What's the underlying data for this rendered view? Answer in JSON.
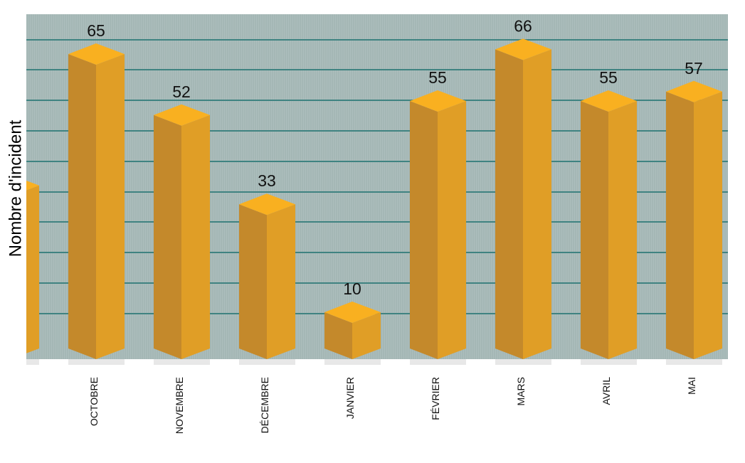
{
  "chart_data": {
    "type": "bar",
    "title": "",
    "xlabel": "",
    "ylabel": "Nombre d'incident",
    "categories": [
      "",
      "OCTOBRE",
      "NOVEMBRE",
      "DÉCEMBRE",
      "JANVIER",
      "FÉVRIER",
      "MARS",
      "AVRIL",
      "MAI"
    ],
    "values": [
      37,
      65,
      52,
      33,
      10,
      55,
      66,
      55,
      57
    ],
    "data_labels": [
      "",
      "65",
      "52",
      "33",
      "10",
      "55",
      "66",
      "55",
      "57"
    ],
    "ylim": [
      0,
      70
    ],
    "grid": true,
    "legend": "none",
    "colors": {
      "bar_front": "#C4892B",
      "bar_side": "#E09E26",
      "bar_top": "#F9B020",
      "plot_background": "#A4B7B5",
      "gridline": "#3F8381"
    }
  }
}
